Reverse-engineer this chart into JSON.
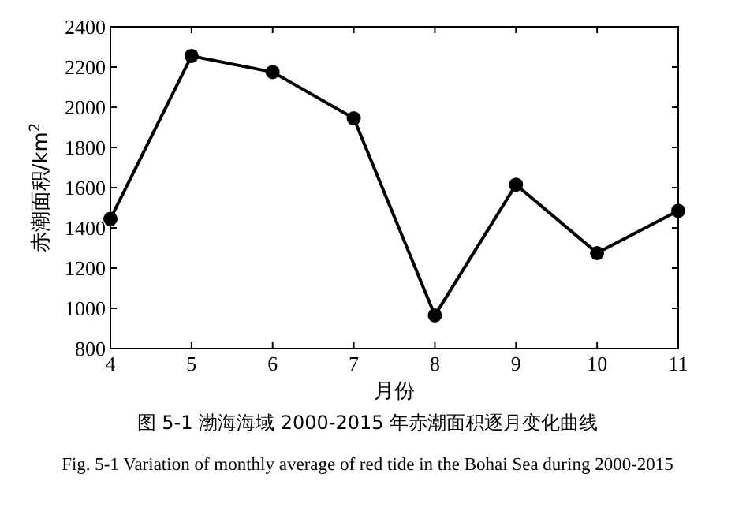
{
  "chart_data": {
    "type": "line",
    "xlabel": "月份",
    "ylabel": "赤潮面积/km$^{2}$",
    "x": [
      4,
      5,
      6,
      7,
      8,
      9,
      10,
      11
    ],
    "values": [
      1445,
      2255,
      2175,
      1945,
      965,
      1615,
      1275,
      1485
    ],
    "color": "#000000",
    "marker": "circle",
    "line_style": "solid",
    "xlim": [
      4,
      11
    ],
    "xticks": [
      4,
      5,
      6,
      7,
      8,
      9,
      10,
      11
    ],
    "ylim": [
      800,
      2400
    ],
    "yticks": [
      800,
      1000,
      1200,
      1400,
      1600,
      1800,
      2000,
      2200,
      2400
    ],
    "annotations": [
      "图 5-1  渤海海域 2000-2015 年赤潮面积逐月变化曲线",
      "Fig. 5-1 Variation of monthly average of red tide in the Bohai Sea during 2000-2015"
    ]
  }
}
